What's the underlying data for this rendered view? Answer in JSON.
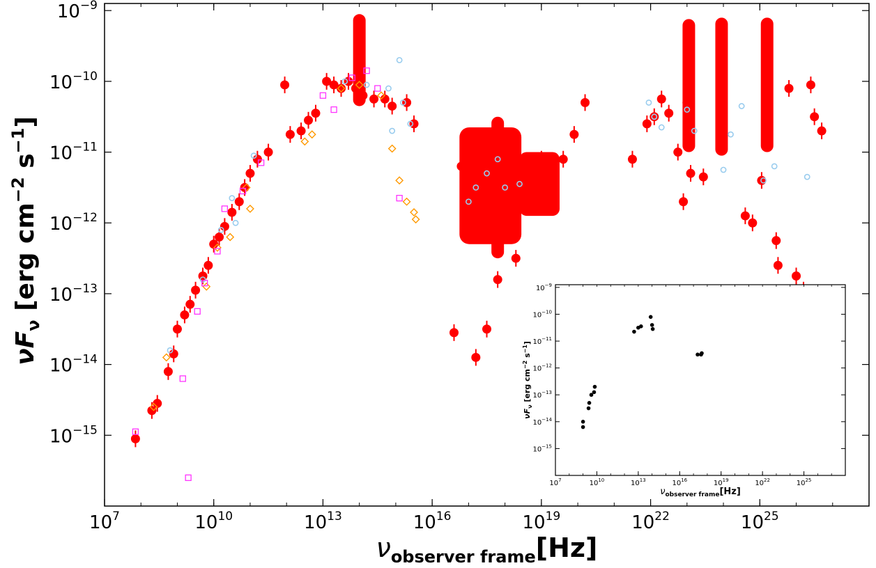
{
  "chart_data": [
    {
      "type": "scatter",
      "scale": "log-log",
      "xlabel": {
        "sym": "ν",
        "sub": "observer frame",
        "unit": "[Hz]"
      },
      "ylabel": {
        "sym": "νF",
        "sub": "ν",
        "unit": "[erg cm",
        "e1": "−2",
        "mid": " s",
        "e2": "−1",
        "end": "]"
      },
      "xlim_log10": [
        7,
        28
      ],
      "ylim_log10": [
        -16,
        -8.9
      ],
      "xticks": [
        {
          "base": "10",
          "exp": "7",
          "log": 7
        },
        {
          "base": "10",
          "exp": "10",
          "log": 10
        },
        {
          "base": "10",
          "exp": "13",
          "log": 13
        },
        {
          "base": "10",
          "exp": "16",
          "log": 16
        },
        {
          "base": "10",
          "exp": "19",
          "log": 19
        },
        {
          "base": "10",
          "exp": "22",
          "log": 22
        },
        {
          "base": "10",
          "exp": "25",
          "log": 25
        }
      ],
      "yticks": [
        {
          "base": "10",
          "exp": "−9",
          "log": -9
        },
        {
          "base": "10",
          "exp": "−10",
          "log": -10
        },
        {
          "base": "10",
          "exp": "−11",
          "log": -11
        },
        {
          "base": "10",
          "exp": "−12",
          "log": -12
        },
        {
          "base": "10",
          "exp": "−13",
          "log": -13
        },
        {
          "base": "10",
          "exp": "−14",
          "log": -14
        },
        {
          "base": "10",
          "exp": "−15",
          "log": -15
        }
      ],
      "colors": {
        "red": "#ff0000",
        "lightblue": "#99ccee",
        "orange": "#ff9900",
        "magenta": "#ff33ff",
        "gray": "#999999"
      },
      "series": [
        {
          "marker": "filled-circle",
          "color": "#ff0000",
          "points_log10": [
            [
              7.85,
              -15.05
            ],
            [
              8.3,
              -14.65
            ],
            [
              8.45,
              -14.55
            ],
            [
              8.75,
              -14.1
            ],
            [
              8.9,
              -13.85
            ],
            [
              9.0,
              -13.5
            ],
            [
              9.2,
              -13.3
            ],
            [
              9.35,
              -13.15
            ],
            [
              9.5,
              -12.95
            ],
            [
              9.7,
              -12.75
            ],
            [
              9.85,
              -12.6
            ],
            [
              10.0,
              -12.3
            ],
            [
              10.15,
              -12.2
            ],
            [
              10.3,
              -12.05
            ],
            [
              10.5,
              -11.85
            ],
            [
              10.7,
              -11.7
            ],
            [
              10.85,
              -11.5
            ],
            [
              11.0,
              -11.3
            ],
            [
              11.2,
              -11.1
            ],
            [
              11.5,
              -11.0
            ],
            [
              11.95,
              -10.05
            ],
            [
              12.1,
              -10.75
            ],
            [
              12.4,
              -10.7
            ],
            [
              12.6,
              -10.55
            ],
            [
              12.8,
              -10.45
            ],
            [
              13.1,
              -10.0
            ],
            [
              13.3,
              -10.05
            ],
            [
              13.5,
              -10.1
            ],
            [
              13.7,
              -10.0
            ],
            [
              13.9,
              -10.1
            ],
            [
              14.1,
              -10.2
            ],
            [
              14.4,
              -10.25
            ],
            [
              14.7,
              -10.25
            ],
            [
              14.9,
              -10.35
            ],
            [
              15.3,
              -10.3
            ],
            [
              15.5,
              -10.6
            ],
            [
              16.6,
              -13.55
            ],
            [
              16.8,
              -11.2
            ],
            [
              17.2,
              -13.9
            ],
            [
              17.5,
              -13.5
            ],
            [
              17.8,
              -12.8
            ],
            [
              18.3,
              -12.5
            ],
            [
              18.7,
              -11.3
            ],
            [
              19.0,
              -11.1
            ],
            [
              19.3,
              -11.3
            ],
            [
              19.6,
              -11.1
            ],
            [
              19.9,
              -10.75
            ],
            [
              20.2,
              -10.3
            ],
            [
              21.5,
              -11.1
            ],
            [
              21.9,
              -10.6
            ],
            [
              22.1,
              -10.5
            ],
            [
              22.3,
              -10.25
            ],
            [
              22.5,
              -10.45
            ],
            [
              22.75,
              -11.0
            ],
            [
              22.9,
              -11.7
            ],
            [
              23.0,
              -10.3
            ],
            [
              23.1,
              -11.3
            ],
            [
              23.45,
              -11.35
            ],
            [
              24.6,
              -11.9
            ],
            [
              24.8,
              -12.0
            ],
            [
              25.05,
              -11.4
            ],
            [
              25.45,
              -12.25
            ],
            [
              25.5,
              -12.6
            ],
            [
              25.8,
              -10.1
            ],
            [
              26.0,
              -12.75
            ],
            [
              26.2,
              -12.95
            ],
            [
              26.4,
              -10.05
            ],
            [
              26.5,
              -10.5
            ],
            [
              26.7,
              -10.7
            ]
          ]
        },
        {
          "marker": "open-circle",
          "color": "#99ccee",
          "points_log10": [
            [
              8.8,
              -13.8
            ],
            [
              9.7,
              -12.8
            ],
            [
              10.2,
              -12.1
            ],
            [
              10.5,
              -11.65
            ],
            [
              10.6,
              -12.0
            ],
            [
              11.1,
              -11.05
            ],
            [
              13.6,
              -10.0
            ],
            [
              14.2,
              -10.05
            ],
            [
              14.8,
              -10.1
            ],
            [
              14.9,
              -10.7
            ],
            [
              15.1,
              -9.7
            ],
            [
              15.2,
              -10.3
            ],
            [
              15.4,
              -10.6
            ],
            [
              17.0,
              -11.7
            ],
            [
              17.2,
              -11.5
            ],
            [
              17.5,
              -11.3
            ],
            [
              17.8,
              -11.1
            ],
            [
              18.0,
              -11.5
            ],
            [
              18.4,
              -11.45
            ],
            [
              21.95,
              -10.3
            ],
            [
              22.1,
              -10.5
            ],
            [
              22.3,
              -10.65
            ],
            [
              23.0,
              -10.4
            ],
            [
              23.2,
              -10.7
            ],
            [
              24.0,
              -11.25
            ],
            [
              24.2,
              -10.75
            ],
            [
              24.5,
              -10.35
            ],
            [
              25.1,
              -11.4
            ],
            [
              25.4,
              -11.2
            ],
            [
              26.3,
              -11.35
            ]
          ]
        },
        {
          "marker": "open-diamond",
          "color": "#ff9900",
          "points_log10": [
            [
              8.35,
              -14.6
            ],
            [
              8.7,
              -13.9
            ],
            [
              9.8,
              -12.9
            ],
            [
              10.1,
              -12.35
            ],
            [
              10.45,
              -12.2
            ],
            [
              10.9,
              -11.5
            ],
            [
              11.0,
              -11.8
            ],
            [
              12.5,
              -10.85
            ],
            [
              12.7,
              -10.75
            ],
            [
              13.5,
              -10.1
            ],
            [
              14.0,
              -10.05
            ],
            [
              14.6,
              -10.2
            ],
            [
              14.9,
              -10.95
            ],
            [
              15.1,
              -11.4
            ],
            [
              15.3,
              -11.7
            ],
            [
              15.5,
              -11.85
            ],
            [
              15.55,
              -11.95
            ]
          ]
        },
        {
          "marker": "open-square",
          "color": "#ff33ff",
          "points_log10": [
            [
              7.85,
              -14.95
            ],
            [
              9.15,
              -14.2
            ],
            [
              9.3,
              -15.6
            ],
            [
              9.55,
              -13.25
            ],
            [
              9.75,
              -12.85
            ],
            [
              10.1,
              -12.4
            ],
            [
              10.3,
              -11.8
            ],
            [
              10.8,
              -11.55
            ],
            [
              11.3,
              -11.15
            ],
            [
              13.0,
              -10.2
            ],
            [
              13.3,
              -10.4
            ],
            [
              13.8,
              -9.95
            ],
            [
              14.2,
              -9.85
            ],
            [
              14.5,
              -10.1
            ],
            [
              15.1,
              -11.65
            ]
          ]
        }
      ],
      "vertical_bands_log10": [
        {
          "x": 14.0,
          "y_low": -10.35,
          "y_high": -9.05
        },
        {
          "x": 23.05,
          "y_low": -11.0,
          "y_high": -9.12
        },
        {
          "x": 23.95,
          "y_low": -11.05,
          "y_high": -9.1
        },
        {
          "x": 25.2,
          "y_low": -11.0,
          "y_high": -9.1
        },
        {
          "x": 17.8,
          "y_low": -12.5,
          "y_high": -10.5
        }
      ]
    },
    {
      "type": "scatter",
      "scale": "log-log",
      "inset": true,
      "xlabel": {
        "sym": "ν",
        "sub": "observer frame",
        "unit": "[Hz]"
      },
      "ylabel": {
        "sym": "νF",
        "sub": "ν",
        "unit": "[erg cm",
        "e1": "−2",
        "mid": " s",
        "e2": "−1",
        "end": "]"
      },
      "xlim_log10": [
        7,
        28
      ],
      "ylim_log10": [
        -16,
        -8.9
      ],
      "xticks": [
        {
          "base": "10",
          "exp": "7",
          "log": 7
        },
        {
          "base": "10",
          "exp": "10",
          "log": 10
        },
        {
          "base": "10",
          "exp": "13",
          "log": 13
        },
        {
          "base": "10",
          "exp": "16",
          "log": 16
        },
        {
          "base": "10",
          "exp": "19",
          "log": 19
        },
        {
          "base": "10",
          "exp": "22",
          "log": 22
        },
        {
          "base": "10",
          "exp": "25",
          "log": 25
        }
      ],
      "yticks": [
        {
          "base": "10",
          "exp": "−9",
          "log": -9
        },
        {
          "base": "10",
          "exp": "−10",
          "log": -10
        },
        {
          "base": "10",
          "exp": "−11",
          "log": -11
        },
        {
          "base": "10",
          "exp": "−12",
          "log": -12
        },
        {
          "base": "10",
          "exp": "−13",
          "log": -13
        },
        {
          "base": "10",
          "exp": "−14",
          "log": -14
        },
        {
          "base": "10",
          "exp": "−15",
          "log": -15
        }
      ],
      "color": "#000000",
      "points_log10": [
        [
          9.0,
          -14.2
        ],
        [
          9.0,
          -14.0
        ],
        [
          9.4,
          -13.5
        ],
        [
          9.45,
          -13.3
        ],
        [
          9.6,
          -13.0
        ],
        [
          9.8,
          -12.9
        ],
        [
          9.85,
          -12.7
        ],
        [
          12.7,
          -10.65
        ],
        [
          13.0,
          -10.5
        ],
        [
          13.2,
          -10.45
        ],
        [
          13.9,
          -10.1
        ],
        [
          14.0,
          -10.4
        ],
        [
          14.05,
          -10.55
        ],
        [
          17.3,
          -11.5
        ],
        [
          17.55,
          -11.5
        ],
        [
          17.6,
          -11.45
        ]
      ]
    }
  ]
}
